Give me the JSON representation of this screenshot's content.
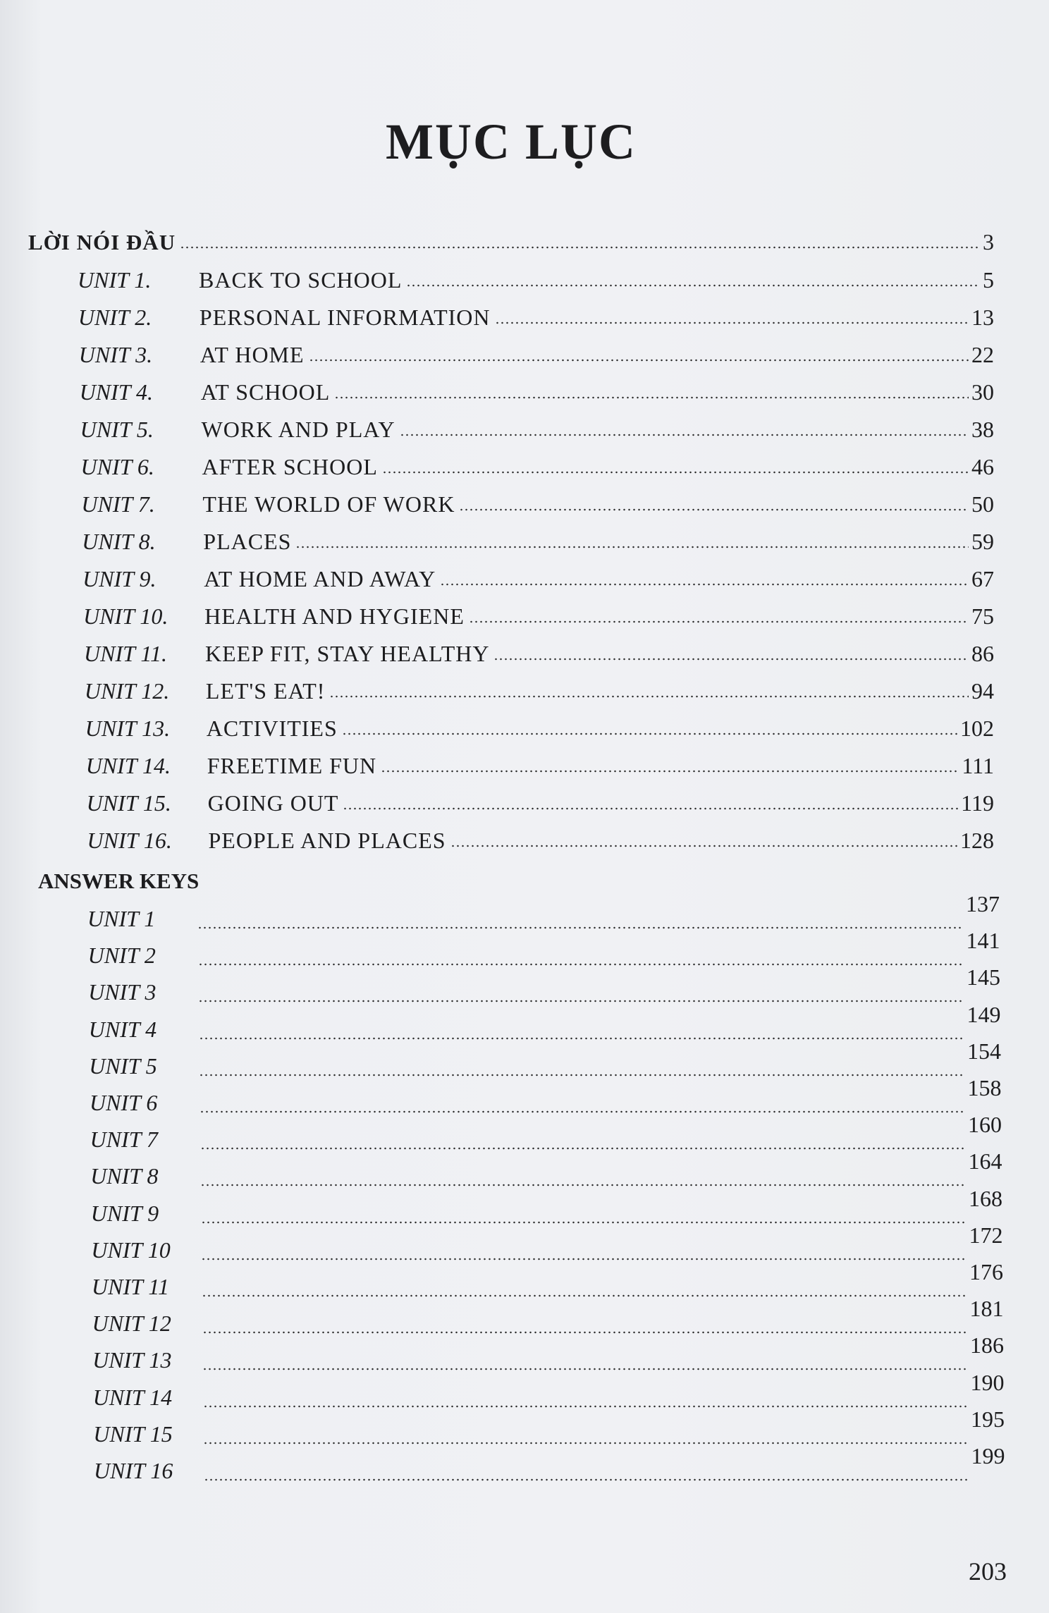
{
  "title": "MỤC LỤC",
  "preface": {
    "label": "LỜI NÓI ĐẦU",
    "page": "3"
  },
  "units": [
    {
      "label": "UNIT 1.",
      "title": "BACK TO SCHOOL",
      "page": "5"
    },
    {
      "label": "UNIT 2.",
      "title": "PERSONAL INFORMATION",
      "page": "13"
    },
    {
      "label": "UNIT 3.",
      "title": "AT HOME",
      "page": "22"
    },
    {
      "label": "UNIT 4.",
      "title": "AT SCHOOL",
      "page": "30"
    },
    {
      "label": "UNIT 5.",
      "title": "WORK AND PLAY",
      "page": "38"
    },
    {
      "label": "UNIT 6.",
      "title": "AFTER SCHOOL",
      "page": "46"
    },
    {
      "label": "UNIT 7.",
      "title": "THE WORLD OF WORK",
      "page": "50"
    },
    {
      "label": "UNIT 8.",
      "title": "PLACES",
      "page": "59"
    },
    {
      "label": "UNIT 9.",
      "title": "AT HOME AND AWAY",
      "page": "67"
    },
    {
      "label": "UNIT 10.",
      "title": "HEALTH AND HYGIENE",
      "page": "75"
    },
    {
      "label": "UNIT 11.",
      "title": "KEEP FIT, STAY HEALTHY",
      "page": "86"
    },
    {
      "label": "UNIT 12.",
      "title": "LET'S EAT!",
      "page": "94"
    },
    {
      "label": "UNIT 13.",
      "title": "ACTIVITIES",
      "page": "102"
    },
    {
      "label": "UNIT 14.",
      "title": "FREETIME FUN",
      "page": "111"
    },
    {
      "label": "UNIT 15.",
      "title": "GOING OUT",
      "page": "119"
    },
    {
      "label": "UNIT 16.",
      "title": "PEOPLE AND PLACES",
      "page": "128"
    }
  ],
  "answer_keys": {
    "heading": "ANSWER KEYS",
    "items": [
      {
        "label": "UNIT 1",
        "page": "137"
      },
      {
        "label": "UNIT 2",
        "page": "141"
      },
      {
        "label": "UNIT 3",
        "page": "145"
      },
      {
        "label": "UNIT 4",
        "page": "149"
      },
      {
        "label": "UNIT 5",
        "page": "154"
      },
      {
        "label": "UNIT 6",
        "page": "158"
      },
      {
        "label": "UNIT 7",
        "page": "160"
      },
      {
        "label": "UNIT 8",
        "page": "164"
      },
      {
        "label": "UNIT 9",
        "page": "168"
      },
      {
        "label": "UNIT 10",
        "page": "172"
      },
      {
        "label": "UNIT 11",
        "page": "176"
      },
      {
        "label": "UNIT 12",
        "page": "181"
      },
      {
        "label": "UNIT 13",
        "page": "186"
      },
      {
        "label": "UNIT 14",
        "page": "190"
      },
      {
        "label": "UNIT 15",
        "page": "195"
      },
      {
        "label": "UNIT 16",
        "page": "199"
      }
    ]
  },
  "page_number": "203"
}
